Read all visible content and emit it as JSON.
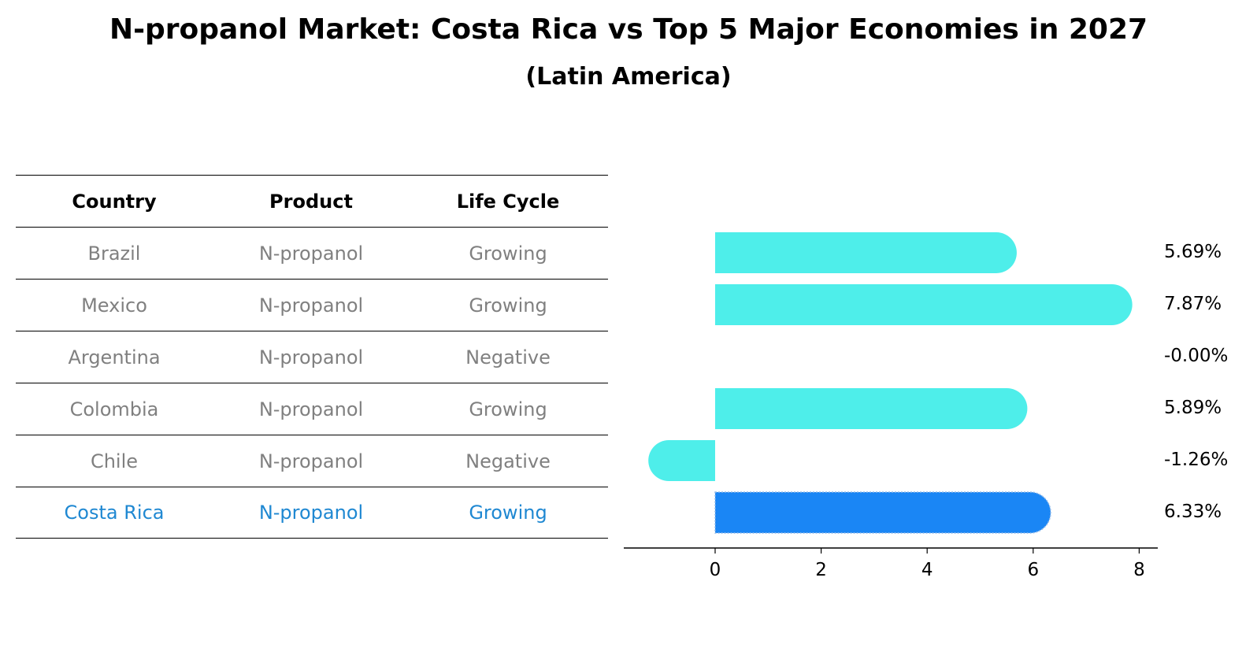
{
  "header": {
    "title": "N-propanol Market: Costa Rica vs Top 5 Major Economies in 2027",
    "subtitle": "(Latin America)"
  },
  "table": {
    "columns": [
      "Country",
      "Product",
      "Life Cycle"
    ],
    "rows": [
      {
        "country": "Brazil",
        "product": "N-propanol",
        "life_cycle": "Growing"
      },
      {
        "country": "Mexico",
        "product": "N-propanol",
        "life_cycle": "Growing"
      },
      {
        "country": "Argentina",
        "product": "N-propanol",
        "life_cycle": "Negative"
      },
      {
        "country": "Colombia",
        "product": "N-propanol",
        "life_cycle": "Growing"
      },
      {
        "country": "Chile",
        "product": "N-propanol",
        "life_cycle": "Negative"
      },
      {
        "country": "Costa Rica",
        "product": "N-propanol",
        "life_cycle": "Growing"
      }
    ],
    "colors": {
      "normal_text": "#808080",
      "highlight_text": "#1f88d2"
    }
  },
  "chart_data": {
    "type": "bar",
    "orientation": "horizontal",
    "title": "N-propanol Market: Costa Rica vs Top 5 Major Economies in 2027",
    "subtitle": "(Latin America)",
    "categories": [
      "Brazil",
      "Mexico",
      "Argentina",
      "Colombia",
      "Chile",
      "Costa Rica"
    ],
    "values": [
      5.69,
      7.87,
      -0.0,
      5.89,
      -1.26,
      6.33
    ],
    "value_labels": [
      "5.69%",
      "7.87%",
      "-0.00%",
      "5.89%",
      "-1.26%",
      "6.33%"
    ],
    "highlight": "Costa Rica",
    "xlim": [
      -1.7,
      8.3
    ],
    "xticks": [
      0,
      2,
      4,
      6,
      8
    ],
    "xtick_labels": [
      "0",
      "2",
      "4",
      "6",
      "8"
    ],
    "xlabel": "",
    "ylabel": "",
    "grid": false,
    "colors": {
      "bar": "#4eeeea",
      "highlight_bar": "#1a86f5",
      "highlight_outline": "#8fb8e8"
    }
  }
}
